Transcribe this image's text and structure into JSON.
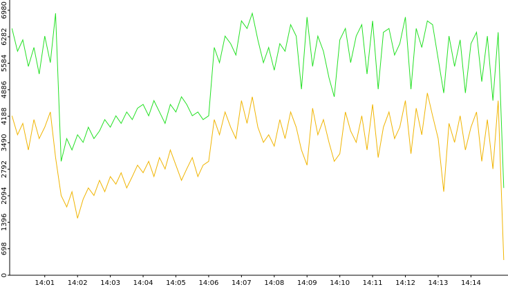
{
  "chart_data": {
    "type": "line",
    "x": [
      840.0,
      840.17,
      840.33,
      840.5,
      840.67,
      840.83,
      841.0,
      841.17,
      841.33,
      841.5,
      841.67,
      841.83,
      842.0,
      842.17,
      842.33,
      842.5,
      842.67,
      842.83,
      843.0,
      843.17,
      843.33,
      843.5,
      843.67,
      843.83,
      844.0,
      844.17,
      844.33,
      844.5,
      844.67,
      844.83,
      845.0,
      845.17,
      845.33,
      845.5,
      845.67,
      845.83,
      846.0,
      846.17,
      846.33,
      846.5,
      846.67,
      846.83,
      847.0,
      847.17,
      847.33,
      847.5,
      847.67,
      847.83,
      848.0,
      848.17,
      848.33,
      848.5,
      848.67,
      848.83,
      849.0,
      849.17,
      849.33,
      849.5,
      849.67,
      849.83,
      850.0,
      850.17,
      850.33,
      850.5,
      850.67,
      850.83,
      851.0,
      851.17,
      851.33,
      851.5,
      851.67,
      851.83,
      852.0,
      852.17,
      852.33,
      852.5,
      852.67,
      852.83,
      853.0,
      853.17,
      853.33,
      853.5,
      853.67,
      853.83,
      854.0,
      854.17,
      854.33,
      854.5,
      854.67,
      854.83,
      855.0
    ],
    "series": [
      {
        "color": "#22e022",
        "values": [
          6500,
          5900,
          6200,
          5500,
          6000,
          5300,
          6300,
          5600,
          6900,
          3000,
          3600,
          3300,
          3700,
          3500,
          3900,
          3600,
          3800,
          4100,
          3900,
          4200,
          4000,
          4300,
          4100,
          4400,
          4500,
          4200,
          4600,
          4300,
          4000,
          4500,
          4300,
          4700,
          4500,
          4200,
          4300,
          4100,
          4200,
          6000,
          5600,
          6300,
          6100,
          5800,
          6700,
          6500,
          6900,
          6200,
          5600,
          6000,
          5400,
          6100,
          5900,
          6600,
          6300,
          4900,
          6800,
          5500,
          6300,
          5900,
          5200,
          4700,
          6200,
          6500,
          5600,
          6300,
          6600,
          5300,
          6700,
          4900,
          6400,
          6500,
          5800,
          6100,
          6800,
          4900,
          6500,
          6000,
          6700,
          6600,
          5700,
          4800,
          6300,
          5500,
          6200,
          4800,
          6100,
          6400,
          5100,
          6300,
          4600,
          6400,
          2300
        ]
      },
      {
        "color": "#f0b400",
        "values": [
          4200,
          3700,
          4000,
          3300,
          4100,
          3600,
          3900,
          4300,
          3100,
          2100,
          1800,
          2200,
          1500,
          2000,
          2300,
          2100,
          2500,
          2200,
          2600,
          2400,
          2700,
          2300,
          2600,
          2900,
          2700,
          3000,
          2600,
          3100,
          2800,
          3300,
          2900,
          2500,
          2800,
          3100,
          2600,
          2900,
          3000,
          4100,
          3700,
          4300,
          3900,
          3600,
          4600,
          4000,
          4700,
          3900,
          3500,
          3700,
          3400,
          4100,
          3600,
          4300,
          3900,
          3300,
          2900,
          4400,
          3700,
          4100,
          3500,
          3000,
          3200,
          4300,
          3800,
          3500,
          4200,
          3300,
          4500,
          3100,
          3900,
          4300,
          3600,
          3900,
          4600,
          3200,
          4400,
          3700,
          4800,
          4200,
          3600,
          2200,
          4000,
          3500,
          4200,
          3300,
          3900,
          4300,
          3000,
          4100,
          2800,
          4600,
          400
        ]
      }
    ],
    "xlim": [
      839.93,
      855.13
    ],
    "xticks": [
      {
        "value": 841,
        "label": "14:01"
      },
      {
        "value": 842,
        "label": "14:02"
      },
      {
        "value": 843,
        "label": "14:03"
      },
      {
        "value": 844,
        "label": "14:04"
      },
      {
        "value": 845,
        "label": "14:05"
      },
      {
        "value": 846,
        "label": "14:06"
      },
      {
        "value": 847,
        "label": "14:07"
      },
      {
        "value": 848,
        "label": "14:08"
      },
      {
        "value": 849,
        "label": "14:09"
      },
      {
        "value": 850,
        "label": "14:10"
      },
      {
        "value": 851,
        "label": "14:11"
      },
      {
        "value": 852,
        "label": "14:12"
      },
      {
        "value": 853,
        "label": "14:13"
      },
      {
        "value": 854,
        "label": "14:14"
      }
    ],
    "ylim": [
      0,
      7250
    ],
    "yticks": [
      0,
      698,
      1396,
      2094,
      2792,
      3490,
      4188,
      4886,
      5584,
      6282,
      6980
    ]
  }
}
